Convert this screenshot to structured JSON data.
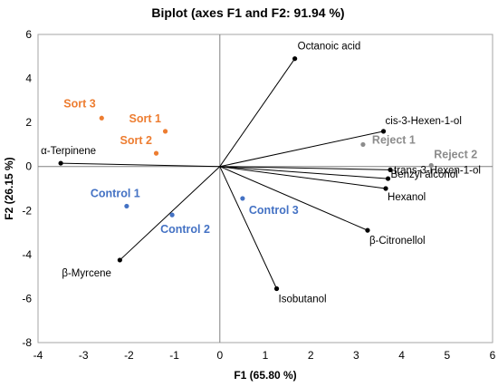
{
  "chart_data": {
    "type": "scatter",
    "title": "Biplot (axes F1 and F2: 91.94 %)",
    "xlabel": "F1 (65.80 %)",
    "ylabel": "F2 (26.15 %)",
    "xlim": [
      -4,
      6
    ],
    "ylim": [
      -8,
      6
    ],
    "xticks": [
      -4,
      -3,
      -2,
      -1,
      0,
      1,
      2,
      3,
      4,
      5,
      6
    ],
    "yticks": [
      -8,
      -6,
      -4,
      -2,
      0,
      2,
      4,
      6
    ],
    "grid": false,
    "variables": [
      {
        "name": "Octanoic acid",
        "x": 1.65,
        "y": 4.9
      },
      {
        "name": "cis-3-Hexen-1-ol",
        "x": 3.6,
        "y": 1.6
      },
      {
        "name": "trans-3-Hexen-1-ol",
        "x": 3.75,
        "y": -0.15
      },
      {
        "name": "Benzyl alcohol",
        "x": 3.7,
        "y": -0.55
      },
      {
        "name": "Hexanol",
        "x": 3.65,
        "y": -1.0
      },
      {
        "name": "β-Citronellol",
        "x": 3.25,
        "y": -2.9
      },
      {
        "name": "Isobutanol",
        "x": 1.25,
        "y": -5.55
      },
      {
        "name": "β-Myrcene",
        "x": -2.2,
        "y": -4.25
      },
      {
        "name": "α-Terpinene",
        "x": -3.5,
        "y": 0.15
      }
    ],
    "observations": [
      {
        "name": "Sort 1",
        "group": "Sort",
        "x": -1.2,
        "y": 1.6
      },
      {
        "name": "Sort 2",
        "group": "Sort",
        "x": -1.4,
        "y": 0.6
      },
      {
        "name": "Sort 3",
        "group": "Sort",
        "x": -2.6,
        "y": 2.2
      },
      {
        "name": "Control 1",
        "group": "Control",
        "x": -2.05,
        "y": -1.8
      },
      {
        "name": "Control 2",
        "group": "Control",
        "x": -1.05,
        "y": -2.2
      },
      {
        "name": "Control 3",
        "group": "Control",
        "x": 0.5,
        "y": -1.45
      },
      {
        "name": "Reject 1",
        "group": "Reject",
        "x": 3.15,
        "y": 1.0
      },
      {
        "name": "Reject 2",
        "group": "Reject",
        "x": 4.65,
        "y": 0.05
      }
    ],
    "colors": {
      "variable": "#000000",
      "Sort": "#ED7D31",
      "Control": "#4472C4",
      "Reject": "#8C8C8C",
      "axis": "#808080",
      "plot_border": "#A6A6A6"
    }
  }
}
